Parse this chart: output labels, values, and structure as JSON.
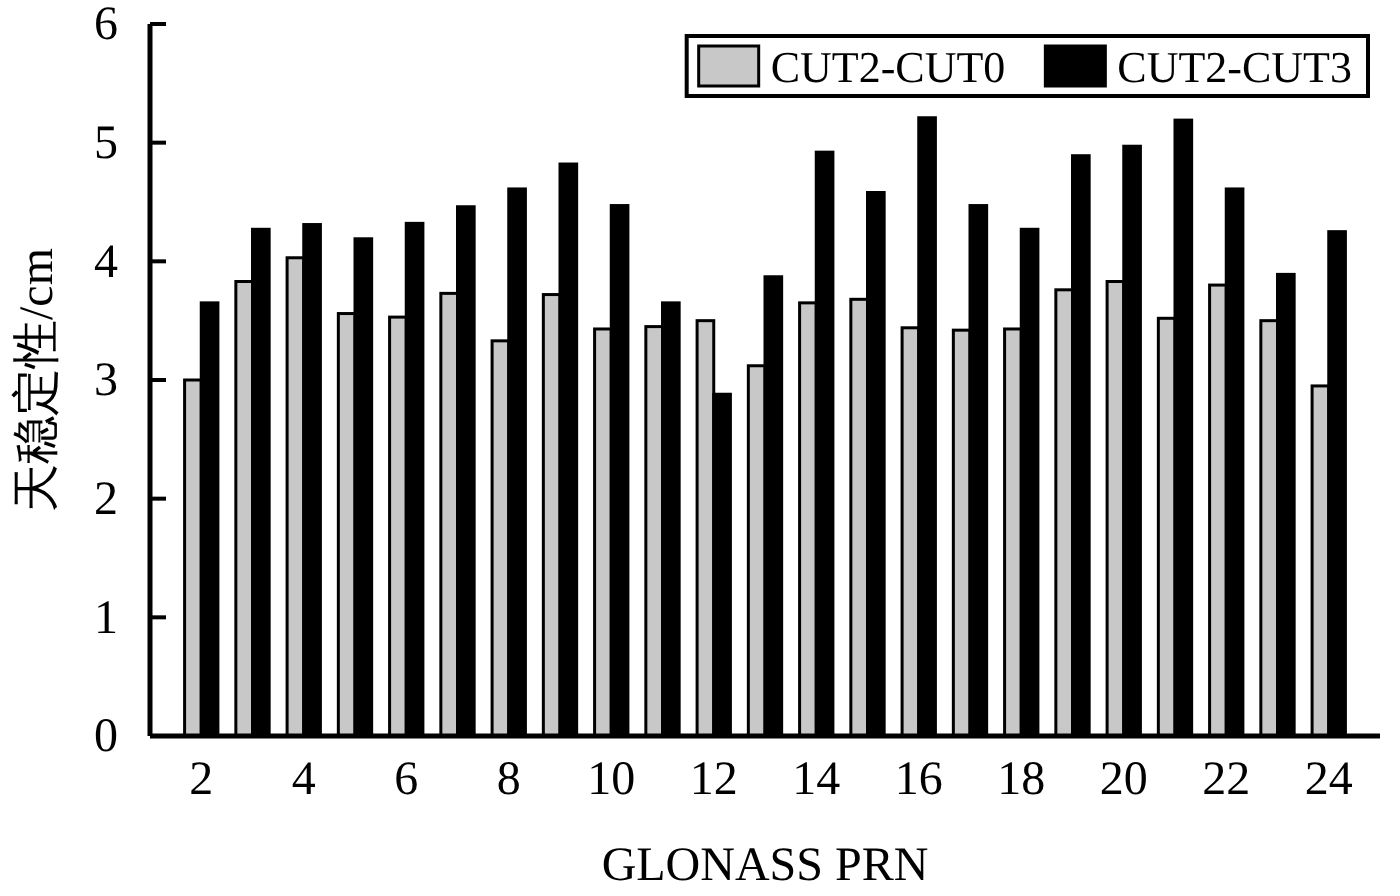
{
  "chart_data": {
    "type": "bar",
    "xlabel": "GLONASS PRN",
    "ylabel": "天稳定性/cm",
    "x": [
      2,
      3,
      4,
      5,
      6,
      7,
      8,
      9,
      10,
      11,
      12,
      13,
      14,
      15,
      16,
      17,
      18,
      19,
      20,
      21,
      22,
      23,
      24
    ],
    "xlim": [
      1,
      25
    ],
    "xticks": [
      2,
      4,
      6,
      8,
      10,
      12,
      14,
      16,
      18,
      20,
      22,
      24
    ],
    "series": [
      {
        "name": "CUT2-CUT0",
        "color": "#c8c8c8",
        "values": [
          3.0,
          3.83,
          4.03,
          3.56,
          3.53,
          3.73,
          3.33,
          3.72,
          3.43,
          3.45,
          3.5,
          3.12,
          3.65,
          3.68,
          3.44,
          3.42,
          3.43,
          3.76,
          3.83,
          3.52,
          3.8,
          3.5,
          2.95
        ]
      },
      {
        "name": "CUT2-CUT3",
        "color": "#000000",
        "values": [
          3.65,
          4.27,
          4.31,
          4.19,
          4.32,
          4.46,
          4.61,
          4.82,
          4.47,
          3.65,
          2.88,
          3.87,
          4.92,
          4.58,
          5.21,
          4.47,
          4.27,
          4.89,
          4.97,
          5.19,
          4.61,
          3.89,
          4.25
        ]
      }
    ],
    "ylim": [
      0,
      6
    ],
    "yticks": [
      0,
      1,
      2,
      3,
      4,
      5,
      6
    ],
    "grid": false,
    "legend": "top right"
  }
}
